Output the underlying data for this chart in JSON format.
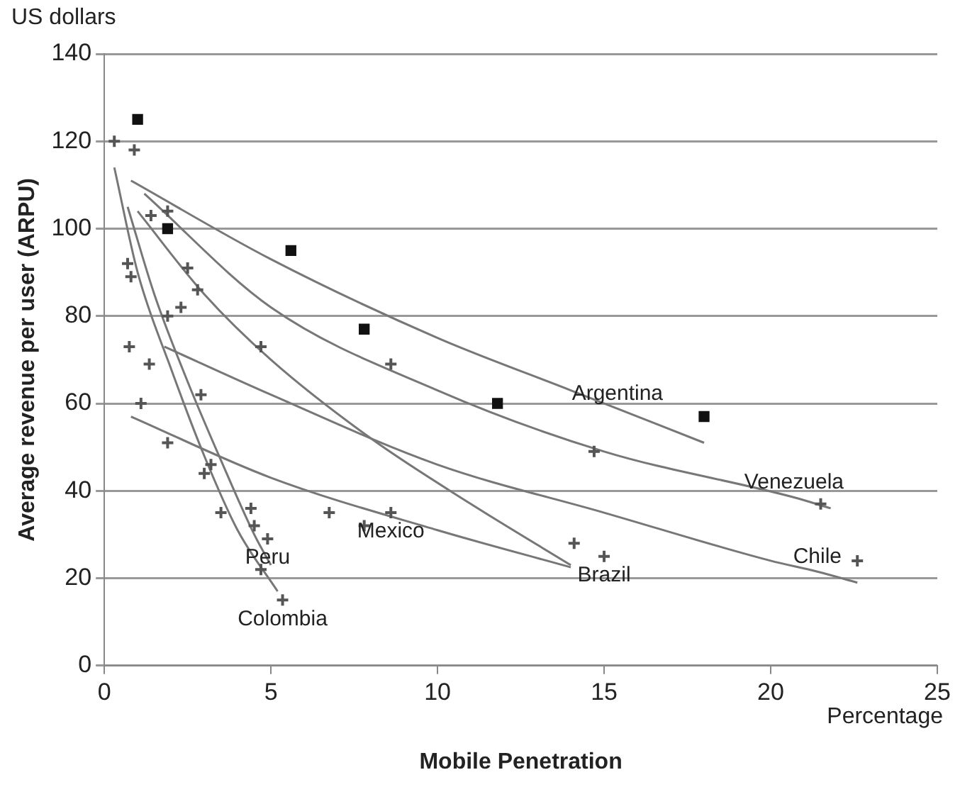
{
  "chart_data": {
    "type": "scatter",
    "xlabel": "Mobile Penetration",
    "ylabel": "Average revenue per user (ARPU)",
    "annotations": [
      "US dollars",
      "Percentage",
      {
        "text": "Argentina",
        "x": 15.4,
        "y": 58.8
      },
      {
        "text": "Venezuela",
        "x": 20.7,
        "y": 38.5
      },
      {
        "text": "Chile",
        "x": 21.4,
        "y": 21.5
      },
      {
        "text": "Brazil",
        "x": 15.0,
        "y": 25
      },
      {
        "text": "Mexico",
        "x": 8.6,
        "y": 35
      },
      {
        "text": "Peru",
        "x": 4.9,
        "y": 29
      },
      {
        "text": "Colombia",
        "x": 5.35,
        "y": 15
      }
    ],
    "xlim": [
      0,
      25
    ],
    "xticks": [
      0,
      5,
      10,
      15,
      20,
      25
    ],
    "ylim": [
      0,
      140
    ],
    "yticks": [
      0,
      20,
      40,
      60,
      80,
      100,
      120,
      140
    ],
    "grid": "y",
    "legend": false,
    "series": [
      {
        "marker": "square",
        "color": "#111111",
        "x": [
          1.0,
          1.9,
          5.6,
          7.8,
          11.8,
          18.0
        ],
        "values": [
          125,
          100,
          95,
          77,
          60,
          57
        ]
      },
      {
        "marker": "cross",
        "color": "#555555",
        "x": [
          1.9,
          2.5,
          4.7,
          8.6,
          14.7,
          21.5,
          22.6,
          15.0,
          14.1,
          8.6,
          6.75,
          7.8,
          4.4,
          4.5,
          4.9,
          4.7,
          5.35,
          3.2,
          3.0,
          3.5,
          1.9,
          1.1,
          2.9,
          0.3,
          0.9,
          1.4,
          0.7,
          0.8,
          2.3,
          1.9,
          0.75,
          1.35,
          2.8
        ],
        "values": [
          104,
          91,
          73,
          69,
          49,
          37,
          24,
          25,
          28,
          35,
          35,
          32,
          36,
          32,
          29,
          22,
          15,
          46,
          44,
          35,
          51,
          60,
          62,
          120,
          118,
          103,
          92,
          89,
          82,
          80,
          73,
          69,
          86
        ]
      },
      {
        "type": "line",
        "marker": "none",
        "color": "#777777",
        "x": [
          0.8,
          5,
          10,
          14,
          15.4,
          18
        ],
        "values": [
          111,
          93,
          75,
          63,
          58.8,
          51
        ]
      },
      {
        "type": "line",
        "marker": "none",
        "color": "#777777",
        "x": [
          1.2,
          5,
          10,
          15,
          20.7,
          21.8
        ],
        "values": [
          108,
          82,
          63,
          49,
          38.5,
          36
        ]
      },
      {
        "type": "line",
        "marker": "none",
        "color": "#777777",
        "x": [
          1.8,
          5,
          10,
          15,
          20,
          21.4,
          22.6
        ],
        "values": [
          73,
          62,
          46,
          35,
          24,
          21.5,
          19
        ]
      },
      {
        "type": "line",
        "marker": "none",
        "color": "#777777",
        "x": [
          1.0,
          3,
          5,
          8,
          11,
          14
        ],
        "values": [
          104,
          85,
          70,
          52,
          37,
          23
        ]
      },
      {
        "type": "line",
        "marker": "none",
        "color": "#777777",
        "x": [
          0.8,
          5,
          10,
          14
        ],
        "values": [
          57,
          43,
          31,
          22.5
        ]
      },
      {
        "type": "line",
        "marker": "none",
        "color": "#777777",
        "x": [
          0.7,
          1.5,
          2.5,
          3.5,
          4.5,
          5
        ],
        "values": [
          105,
          85,
          65,
          47,
          30,
          23
        ]
      },
      {
        "type": "line",
        "marker": "none",
        "color": "#777777",
        "x": [
          0.3,
          1,
          2,
          3,
          4,
          5.2
        ],
        "values": [
          114,
          90,
          68,
          48,
          31,
          17
        ]
      }
    ]
  }
}
